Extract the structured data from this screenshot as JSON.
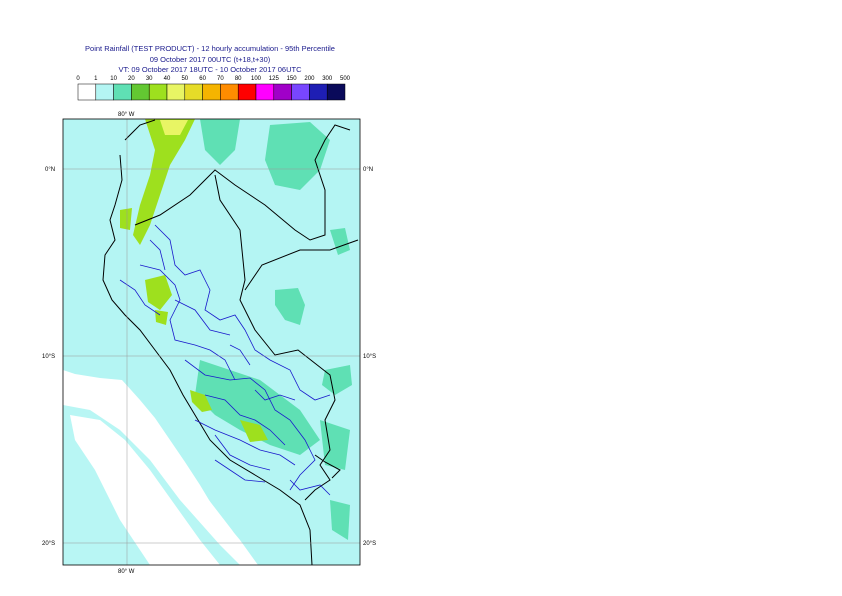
{
  "header": {
    "title": "Point Rainfall (TEST PRODUCT) - 12 hourly accumulation - 95th Percentile",
    "base": "09 October 2017 00UTC (t+18,t+30)",
    "valid": "VT: 09 October 2017 18UTC - 10 October 2017 06UTC"
  },
  "legend": {
    "labels": [
      "0",
      "1",
      "10",
      "20",
      "30",
      "40",
      "50",
      "60",
      "70",
      "80",
      "100",
      "125",
      "150",
      "200",
      "300",
      "500"
    ],
    "colors": [
      "#ffffff",
      "#b4f5f3",
      "#5fe0b4",
      "#63c832",
      "#9ee01e",
      "#e8f564",
      "#e6dc28",
      "#f5b400",
      "#ff8c00",
      "#ff0000",
      "#ff00ff",
      "#a000c8",
      "#7846ff",
      "#1e1eb4",
      "#0a0a5a"
    ]
  },
  "map": {
    "lon_labels": {
      "top": "80° W",
      "bottom": "80° W"
    },
    "lat_labels": [
      "0°N",
      "10°S",
      "20°S"
    ],
    "colors": {
      "sea": "#ffffff",
      "light_rain": "#b4f5f3",
      "moderate_rain": "#5fe0b4",
      "heavy_rain": "#9ee01e",
      "coast": "#000000",
      "regions": "#1a1acc"
    }
  }
}
